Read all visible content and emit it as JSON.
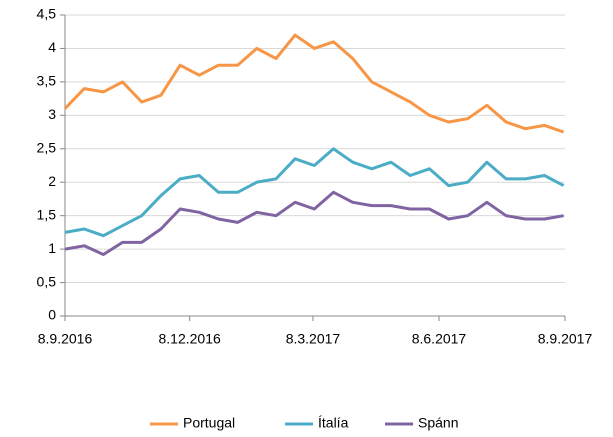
{
  "chart_data": {
    "type": "line",
    "x": [
      "8.9.2016",
      "22.9.2016",
      "6.10.2016",
      "20.10.2016",
      "3.11.2016",
      "17.11.2016",
      "1.12.2016",
      "15.12.2016",
      "29.12.2016",
      "12.1.2017",
      "26.1.2017",
      "9.2.2017",
      "23.2.2017",
      "9.3.2017",
      "23.3.2017",
      "6.4.2017",
      "20.4.2017",
      "4.5.2017",
      "18.5.2017",
      "1.6.2017",
      "15.6.2017",
      "29.6.2017",
      "13.7.2017",
      "27.7.2017",
      "10.8.2017",
      "24.8.2017",
      "7.9.2017"
    ],
    "series": [
      {
        "name": "Portugal",
        "color": "#f79646",
        "values": [
          3.1,
          3.4,
          3.35,
          3.5,
          3.2,
          3.3,
          3.75,
          3.6,
          3.75,
          3.75,
          4.0,
          3.85,
          4.2,
          4.0,
          4.1,
          3.85,
          3.5,
          3.35,
          3.2,
          3.0,
          2.9,
          2.95,
          3.15,
          2.9,
          2.8,
          2.85,
          2.75
        ]
      },
      {
        "name": "Ítalía",
        "color": "#4bacc6",
        "values": [
          1.25,
          1.3,
          1.2,
          1.35,
          1.5,
          1.8,
          2.05,
          2.1,
          1.85,
          1.85,
          2.0,
          2.05,
          2.35,
          2.25,
          2.5,
          2.3,
          2.2,
          2.3,
          2.1,
          2.2,
          1.95,
          2.0,
          2.3,
          2.05,
          2.05,
          2.1,
          1.95
        ]
      },
      {
        "name": "Spánn",
        "color": "#8064a2",
        "values": [
          1.0,
          1.05,
          0.92,
          1.1,
          1.1,
          1.3,
          1.6,
          1.55,
          1.45,
          1.4,
          1.55,
          1.5,
          1.7,
          1.6,
          1.85,
          1.7,
          1.65,
          1.65,
          1.6,
          1.6,
          1.45,
          1.5,
          1.7,
          1.5,
          1.45,
          1.45,
          1.5
        ]
      }
    ],
    "xlim": [
      "8.9.2016",
      "8.9.2017"
    ],
    "xticks": [
      "8.9.2016",
      "8.12.2016",
      "8.3.2017",
      "8.6.2017",
      "8.9.2017"
    ],
    "ylim": [
      0,
      4.5
    ],
    "yticks": [
      0,
      {
        "value": 0.5,
        "label": "0,5"
      },
      1,
      {
        "value": 1.5,
        "label": "1,5"
      },
      2,
      {
        "value": 2.5,
        "label": "2,5"
      },
      3,
      {
        "value": 3.5,
        "label": "3,5"
      },
      4,
      {
        "value": 4.5,
        "label": "4,5"
      }
    ],
    "grid": true,
    "legend": "bottom"
  }
}
